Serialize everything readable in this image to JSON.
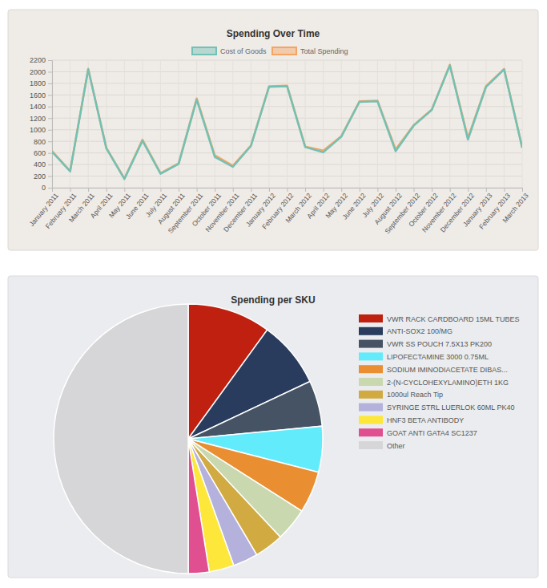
{
  "chart_data": [
    {
      "type": "line",
      "title": "Spending Over Time",
      "categories": [
        "January 2011",
        "February 2011",
        "March 2011",
        "April 2011",
        "May 2011",
        "June 2011",
        "July 2011",
        "August 2011",
        "September 2011",
        "October 2011",
        "November 2011",
        "December 2011",
        "January 2012",
        "February 2012",
        "March 2012",
        "April 2012",
        "May 2012",
        "June 2012",
        "July 2012",
        "August 2012",
        "September 2012",
        "October 2012",
        "November 2012",
        "December 2012",
        "January 2013",
        "February 2013",
        "March 2013"
      ],
      "series": [
        {
          "name": "Cost of Goods",
          "color": "#72c1b5",
          "values": [
            620,
            280,
            2040,
            680,
            150,
            810,
            240,
            410,
            1520,
            530,
            360,
            720,
            1740,
            1750,
            700,
            610,
            880,
            1480,
            1490,
            630,
            1070,
            1340,
            2110,
            830,
            1740,
            2040,
            690
          ]
        },
        {
          "name": "Total Spending",
          "color": "#f5a462",
          "values": [
            630,
            290,
            2050,
            690,
            160,
            830,
            250,
            420,
            1540,
            560,
            380,
            730,
            1750,
            1760,
            710,
            640,
            890,
            1490,
            1500,
            660,
            1080,
            1350,
            2120,
            860,
            1750,
            2050,
            700
          ]
        }
      ],
      "ylim": [
        0,
        2200
      ],
      "yticks": [
        0,
        200,
        400,
        600,
        800,
        1000,
        1200,
        1400,
        1600,
        1800,
        2000,
        2200
      ],
      "grid": true,
      "legend": "top"
    },
    {
      "type": "pie",
      "title": "Spending per SKU",
      "categories": [
        "VWR RACK CARDBOARD 15ML TUBES",
        "ANTI-SOX2 100/MG",
        "VWR SS POUCH 7.5X13 PK200",
        "LIPOFECTAMINE 3000 0.75ML",
        "SODIUM IMINODIACETATE DIBAS...",
        "2-(N-CYCLOHEXYLAMINO)ETH 1KG",
        "1000ul Reach Tip",
        "SYRINGE STRL LUERLOK 60ML PK40",
        "HNF3 BETA ANTIBODY",
        "GOAT ANTI GATA4 SC1237",
        "Other"
      ],
      "values": [
        10,
        8,
        5.5,
        5.5,
        5,
        4,
        3.5,
        3,
        3,
        2.5,
        50
      ],
      "colors": [
        "#c0200f",
        "#2a3c5e",
        "#465364",
        "#62ecfb",
        "#ea8e32",
        "#c9d8ae",
        "#d2aa42",
        "#b4b2dc",
        "#fde73a",
        "#e04f8f",
        "#d6d6d8"
      ],
      "legend": "right"
    }
  ]
}
